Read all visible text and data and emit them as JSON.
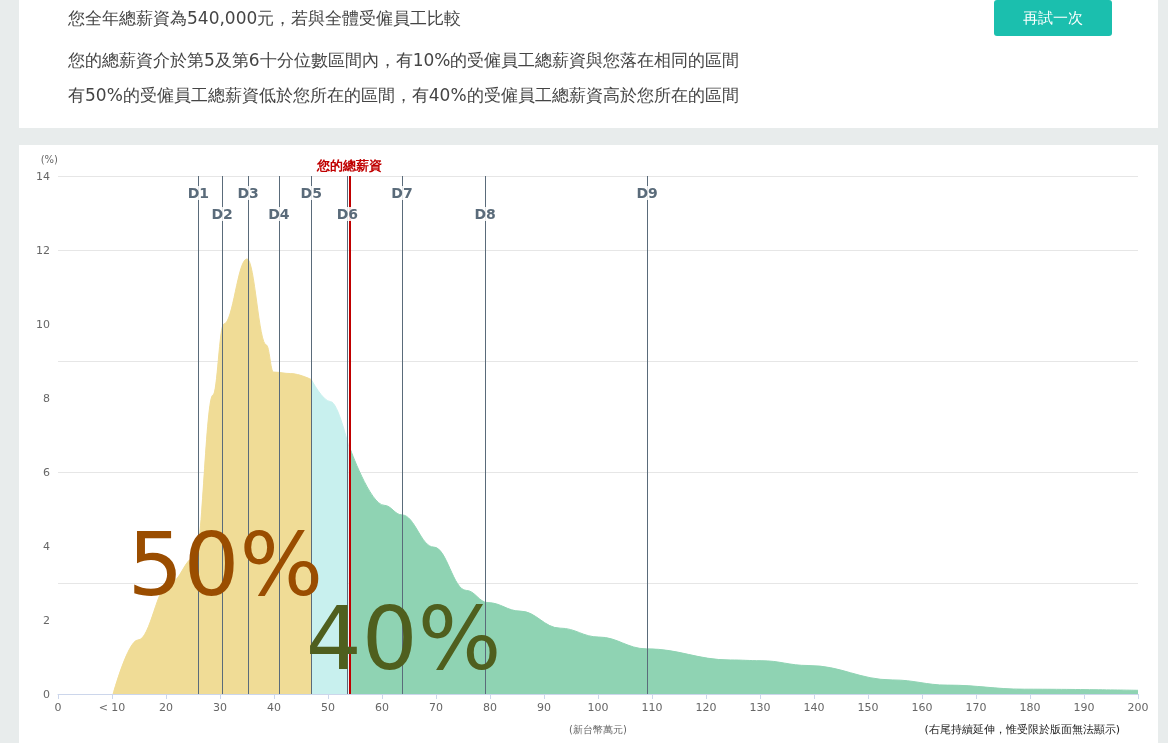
{
  "chart_data": {
    "type": "area",
    "title": "您全年總薪資為540,000元，若與全體受僱員工比較",
    "subtitle": "您的總薪資介於第5及第6十分位數區間內，有10%的受僱員工總薪資與您落在相同的區間",
    "xlabel": "(新台幣萬元)",
    "ylabel": "(%)",
    "series": [
      {
        "color": "#f0dc96",
        "x": [
          10.2,
          14.8,
          20.7,
          25.4,
          28.7,
          30.7,
          35,
          38.6,
          39.9,
          43.1,
          46.9
        ],
        "values": [
          0,
          1.46,
          3.0,
          3.7,
          8.08,
          10.0,
          11.76,
          9.43,
          8.7,
          8.66,
          8.5
        ]
      },
      {
        "color": "#c8f0ee",
        "x": [
          46.9,
          50.5,
          53.8
        ],
        "values": [
          8.5,
          7.9,
          6.7
        ]
      },
      {
        "color": "#8fd3b3",
        "x": [
          54,
          60.4,
          63.7,
          69.6,
          75.6,
          79.6,
          85.6,
          93,
          100.1,
          109,
          124.5,
          130.2,
          138.9,
          154.6,
          164.7,
          179,
          200
        ],
        "values": [
          6.67,
          5.1,
          4.84,
          3.97,
          2.8,
          2.47,
          2.24,
          1.78,
          1.54,
          1.22,
          0.92,
          0.9,
          0.77,
          0.38,
          0.24,
          0.13,
          0.1
        ]
      }
    ],
    "xlim": [
      0,
      200
    ],
    "xticks": [
      0,
      {
        "value": 10,
        "label": "< 10"
      },
      20,
      30,
      40,
      50,
      60,
      70,
      80,
      90,
      100,
      110,
      120,
      130,
      140,
      150,
      160,
      170,
      180,
      190,
      200
    ],
    "ylim": [
      0,
      14
    ],
    "yticks": [
      0,
      2,
      4,
      6,
      8,
      10,
      12,
      14
    ],
    "grid": "y",
    "ref_lines": [
      {
        "axis": "x",
        "value": 54,
        "label": "您的總薪資",
        "color": "#c00000"
      },
      {
        "axis": "x",
        "value": 26,
        "label": "D1",
        "color": "#5a6b7a"
      },
      {
        "axis": "x",
        "value": 30.4,
        "label": "D2",
        "color": "#5a6b7a"
      },
      {
        "axis": "x",
        "value": 35.2,
        "label": "D3",
        "color": "#5a6b7a"
      },
      {
        "axis": "x",
        "value": 40.9,
        "label": "D4",
        "color": "#5a6b7a"
      },
      {
        "axis": "x",
        "value": 46.9,
        "label": "D5",
        "color": "#5a6b7a"
      },
      {
        "axis": "x",
        "value": 53.6,
        "label": "D6",
        "color": "#5a6b7a"
      },
      {
        "axis": "x",
        "value": 63.7,
        "label": "D7",
        "color": "#5a6b7a"
      },
      {
        "axis": "x",
        "value": 79.1,
        "label": "D8",
        "color": "#5a6b7a"
      },
      {
        "axis": "x",
        "value": 109.1,
        "label": "D9",
        "color": "#5a6b7a"
      }
    ],
    "annotations": [
      "再試一次",
      "有50%的受僱員工總薪資低於您所在的區間，有40%的受僱員工總薪資高於您所在的區間",
      {
        "text": "50%",
        "x": 31,
        "y": 3.5
      },
      {
        "text": "40%",
        "x": 64,
        "y": 1.5
      },
      "(右尾持續延伸，惟受限於版面無法顯示)"
    ]
  }
}
